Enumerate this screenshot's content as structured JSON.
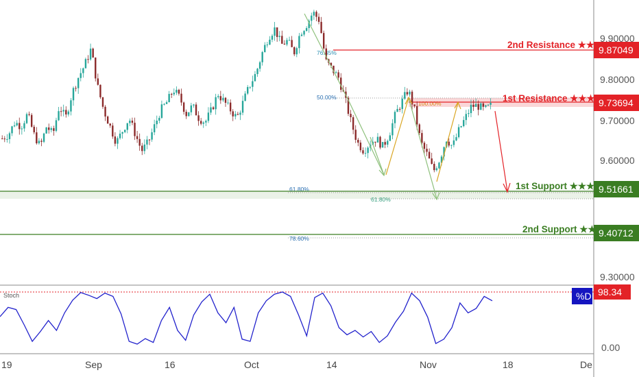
{
  "chart_data": {
    "type": "candlestick",
    "title": "",
    "price_axis": {
      "ticks": [
        "9.90000",
        "9.80000",
        "9.70000",
        "9.60000",
        "9.30000"
      ],
      "ylim": [
        9.27,
        9.97
      ]
    },
    "date_axis": {
      "ticks": [
        "19",
        "Sep",
        "16",
        "Oct",
        "14",
        "Nov",
        "18",
        "De"
      ]
    },
    "levels": [
      {
        "name": "2nd Resistance ★★",
        "value": "9.87049",
        "price": 9.87049,
        "kind": "resistance",
        "color": "#e32227"
      },
      {
        "name": "1st Resistance ★★★",
        "value": "9.73694",
        "price": 9.73694,
        "kind": "resistance",
        "color": "#e32227"
      },
      {
        "name": "1st Support ★★★",
        "value": "9.51661",
        "price": 9.51661,
        "kind": "support",
        "color": "#3a7d22"
      },
      {
        "name": "2nd Support ★★",
        "value": "9.40712",
        "price": 9.40712,
        "kind": "support",
        "color": "#3a7d22"
      }
    ],
    "fib_labels": [
      "76.45%",
      "50.00%",
      "100.00%",
      "61.80%",
      "61.80%",
      "78.60%"
    ],
    "price_path": [
      9.63,
      9.64,
      9.67,
      9.66,
      9.69,
      9.64,
      9.61,
      9.66,
      9.64,
      9.71,
      9.68,
      9.74,
      9.78,
      9.81,
      9.85,
      9.76,
      9.7,
      9.66,
      9.62,
      9.65,
      9.68,
      9.64,
      9.6,
      9.62,
      9.66,
      9.7,
      9.72,
      9.75,
      9.73,
      9.69,
      9.71,
      9.68,
      9.67,
      9.7,
      9.74,
      9.72,
      9.7,
      9.68,
      9.72,
      9.76,
      9.79,
      9.84,
      9.88,
      9.9,
      9.86,
      9.87,
      9.84,
      9.89,
      9.91,
      9.94,
      9.92,
      9.82,
      9.8,
      9.78,
      9.73,
      9.67,
      9.62,
      9.6,
      9.62,
      9.63,
      9.61,
      9.64,
      9.69,
      9.72,
      9.75,
      9.7,
      9.62,
      9.59,
      9.55,
      9.58,
      9.63,
      9.61,
      9.65,
      9.68,
      9.71,
      9.71,
      9.7,
      9.71
    ],
    "oscillator": {
      "name": "Stoch",
      "current": "98.34",
      "line_label": "%D",
      "zero_label": "0.00",
      "values": [
        55,
        72,
        68,
        40,
        10,
        28,
        48,
        30,
        62,
        85,
        99,
        94,
        88,
        98,
        92,
        60,
        10,
        5,
        15,
        8,
        48,
        72,
        30,
        12,
        58,
        82,
        96,
        62,
        44,
        72,
        14,
        10,
        62,
        84,
        96,
        100,
        92,
        58,
        20,
        90,
        98,
        75,
        35,
        22,
        30,
        18,
        28,
        8,
        20,
        45,
        65,
        98,
        84,
        54,
        6,
        14,
        35,
        80,
        62,
        70,
        92,
        84
      ]
    },
    "colors": {
      "up": "#26a69a",
      "down": "#8b2a2a",
      "resistance": "#e32227",
      "support": "#3a7d22",
      "oscillator": "#2222cc"
    }
  }
}
